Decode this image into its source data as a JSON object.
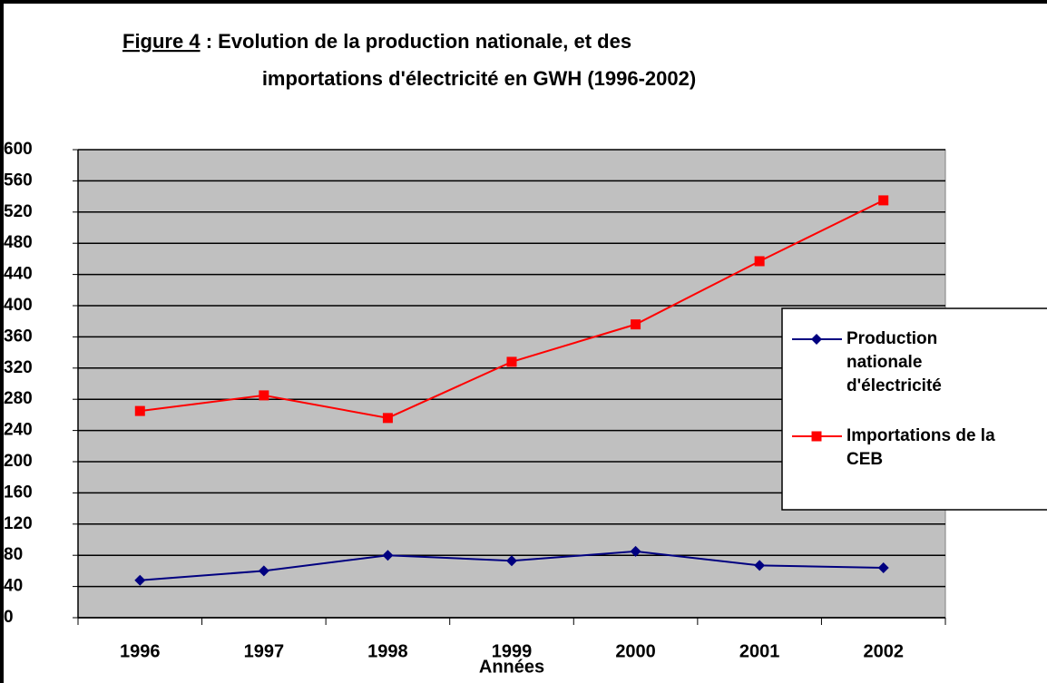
{
  "chart_data": {
    "type": "line",
    "title_prefix": "Figure 4",
    "title_lines": [
      ": Evolution de la production nationale,  et des",
      "importations d'électricité en GWH (1996-2002)"
    ],
    "x_label": "Années",
    "categories": [
      "1996",
      "1997",
      "1998",
      "1999",
      "2000",
      "2001",
      "2002"
    ],
    "series": [
      {
        "name": "Production nationale d'électricité",
        "color": "#000080",
        "marker": "diamond",
        "values": [
          48,
          60,
          80,
          73,
          85,
          67,
          64
        ]
      },
      {
        "name": "Importations de la CEB",
        "color": "#ff0000",
        "marker": "square",
        "values": [
          265,
          285,
          256,
          328,
          376,
          457,
          535
        ]
      }
    ],
    "ylim": [
      0,
      600
    ],
    "yticks": [
      0,
      40,
      80,
      120,
      160,
      200,
      240,
      280,
      320,
      360,
      400,
      440,
      480,
      520,
      560,
      600
    ],
    "grid": true,
    "legend": "right"
  }
}
